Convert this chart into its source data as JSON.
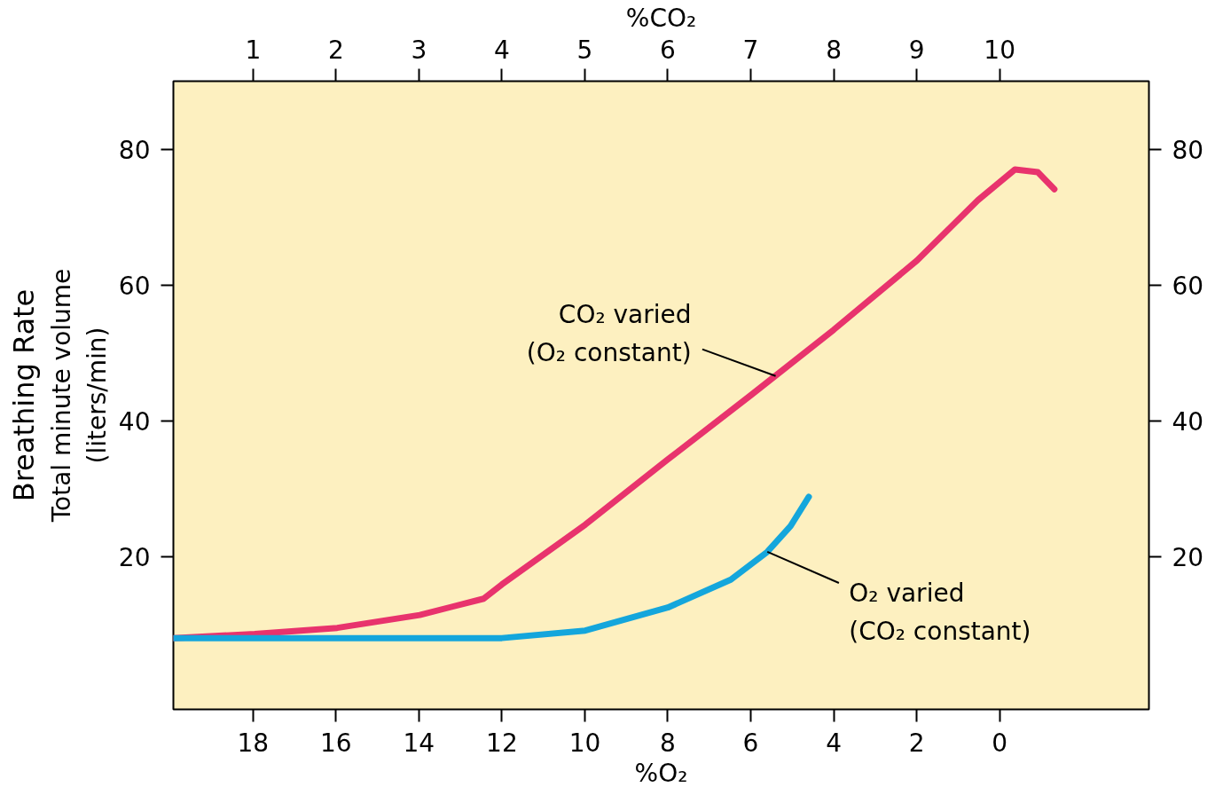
{
  "chart_data": {
    "type": "line",
    "xlabel": "%O₂",
    "x2label": "%CO₂",
    "ylabel": "Total minute volume\n(liters/min)",
    "annotations": [
      "Breathing Rate",
      {
        "text": "CO₂ varied\n(O₂ constant)",
        "x": 5.4,
        "y": 46.6
      },
      {
        "text": "O₂ varied\n(CO₂ constant)",
        "x": 5.6,
        "y": 20.7
      }
    ],
    "xlim": [
      19.92,
      -3.6
    ],
    "xticks": [
      18,
      16,
      14,
      12,
      10,
      8,
      6,
      4,
      2,
      0
    ],
    "x2lim": [
      0.04,
      11.8
    ],
    "x2ticks": [
      1,
      2,
      3,
      4,
      5,
      6,
      7,
      8,
      9,
      10
    ],
    "ylim": [
      -2.5,
      90
    ],
    "yticks": [
      20,
      40,
      60,
      80
    ],
    "y2lim": [
      -2.5,
      90
    ],
    "y2ticks": [
      20,
      40,
      60,
      80
    ],
    "grid": false,
    "marker": "none",
    "line_style": "solid",
    "series": [
      {
        "color": "#e8336d",
        "x": [
          19.92,
          17.96,
          15.97,
          13.98,
          12.44,
          12.0,
          9.99,
          8.0,
          5.99,
          4.0,
          1.99,
          0.52,
          -0.37,
          -0.92,
          -1.32
        ],
        "values": [
          8.0,
          8.6,
          9.5,
          11.4,
          13.8,
          15.9,
          24.7,
          34.3,
          43.8,
          53.4,
          63.6,
          72.5,
          77.0,
          76.6,
          74.1
        ]
      },
      {
        "color": "#14a6dc",
        "x": [
          19.92,
          15.97,
          12.0,
          9.99,
          8.0,
          6.48,
          5.6,
          5.04,
          4.6
        ],
        "values": [
          8.0,
          8.0,
          8.0,
          9.1,
          12.5,
          16.6,
          20.7,
          24.5,
          28.8
        ]
      }
    ]
  }
}
